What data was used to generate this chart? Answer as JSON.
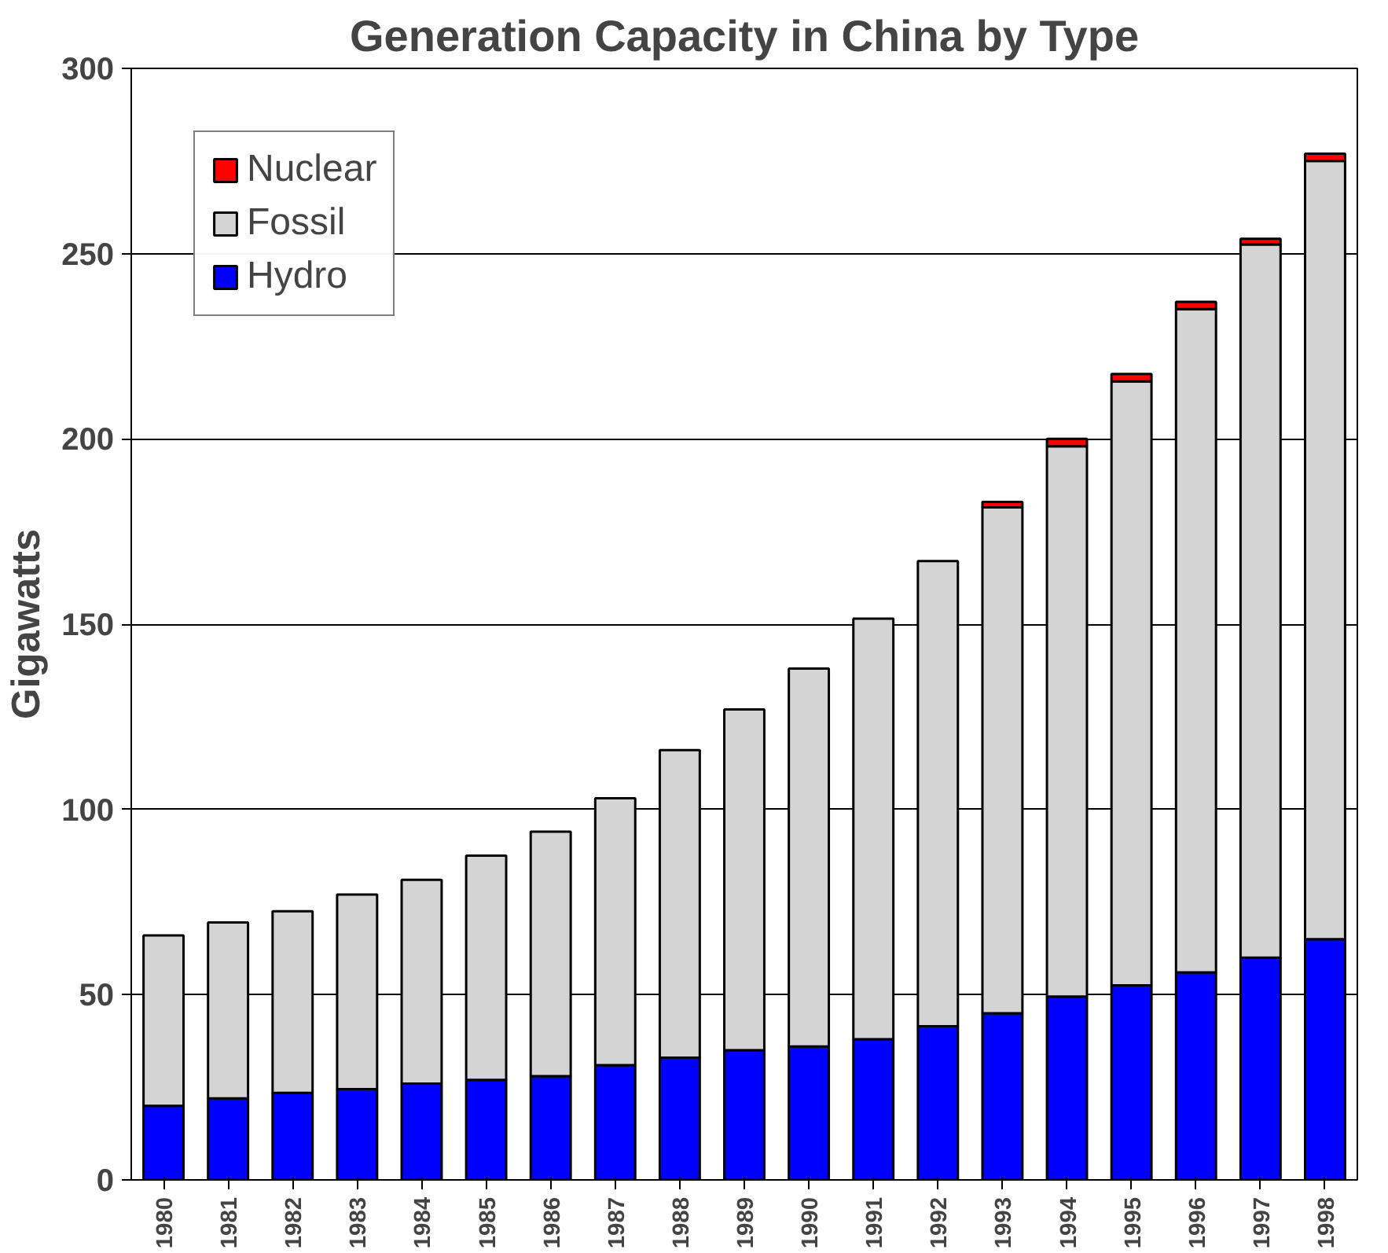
{
  "chart_data": {
    "type": "bar",
    "title": "Generation Capacity in China by Type",
    "ylabel": "Gigawatts",
    "categories": [
      "1980",
      "1981",
      "1982",
      "1983",
      "1984",
      "1985",
      "1986",
      "1987",
      "1988",
      "1989",
      "1990",
      "1991",
      "1992",
      "1993",
      "1994",
      "1995",
      "1996",
      "1997",
      "1998"
    ],
    "stacked": true,
    "series": [
      {
        "name": "Hydro",
        "color": "#0000ff",
        "values": [
          20,
          22,
          23.5,
          24.5,
          26,
          27,
          28,
          31,
          33,
          35,
          36,
          38,
          41.5,
          45,
          49.5,
          52.5,
          56,
          60,
          65
        ]
      },
      {
        "name": "Fossil",
        "color": "#d4d4d4",
        "values": [
          46,
          47.5,
          49,
          52.5,
          55,
          60.5,
          66,
          72,
          83,
          92,
          102,
          113.5,
          125.5,
          136.5,
          148.5,
          163,
          179,
          192.5,
          210
        ]
      },
      {
        "name": "Nuclear",
        "color": "#ff0000",
        "values": [
          null,
          null,
          null,
          null,
          null,
          null,
          null,
          null,
          null,
          null,
          null,
          null,
          null,
          1.5,
          2,
          2,
          2,
          1.5,
          2
        ]
      }
    ],
    "ylim": [
      0,
      300
    ],
    "yticks": [
      0,
      50,
      100,
      150,
      200,
      250,
      300
    ],
    "grid": "y",
    "legend": "top left"
  }
}
